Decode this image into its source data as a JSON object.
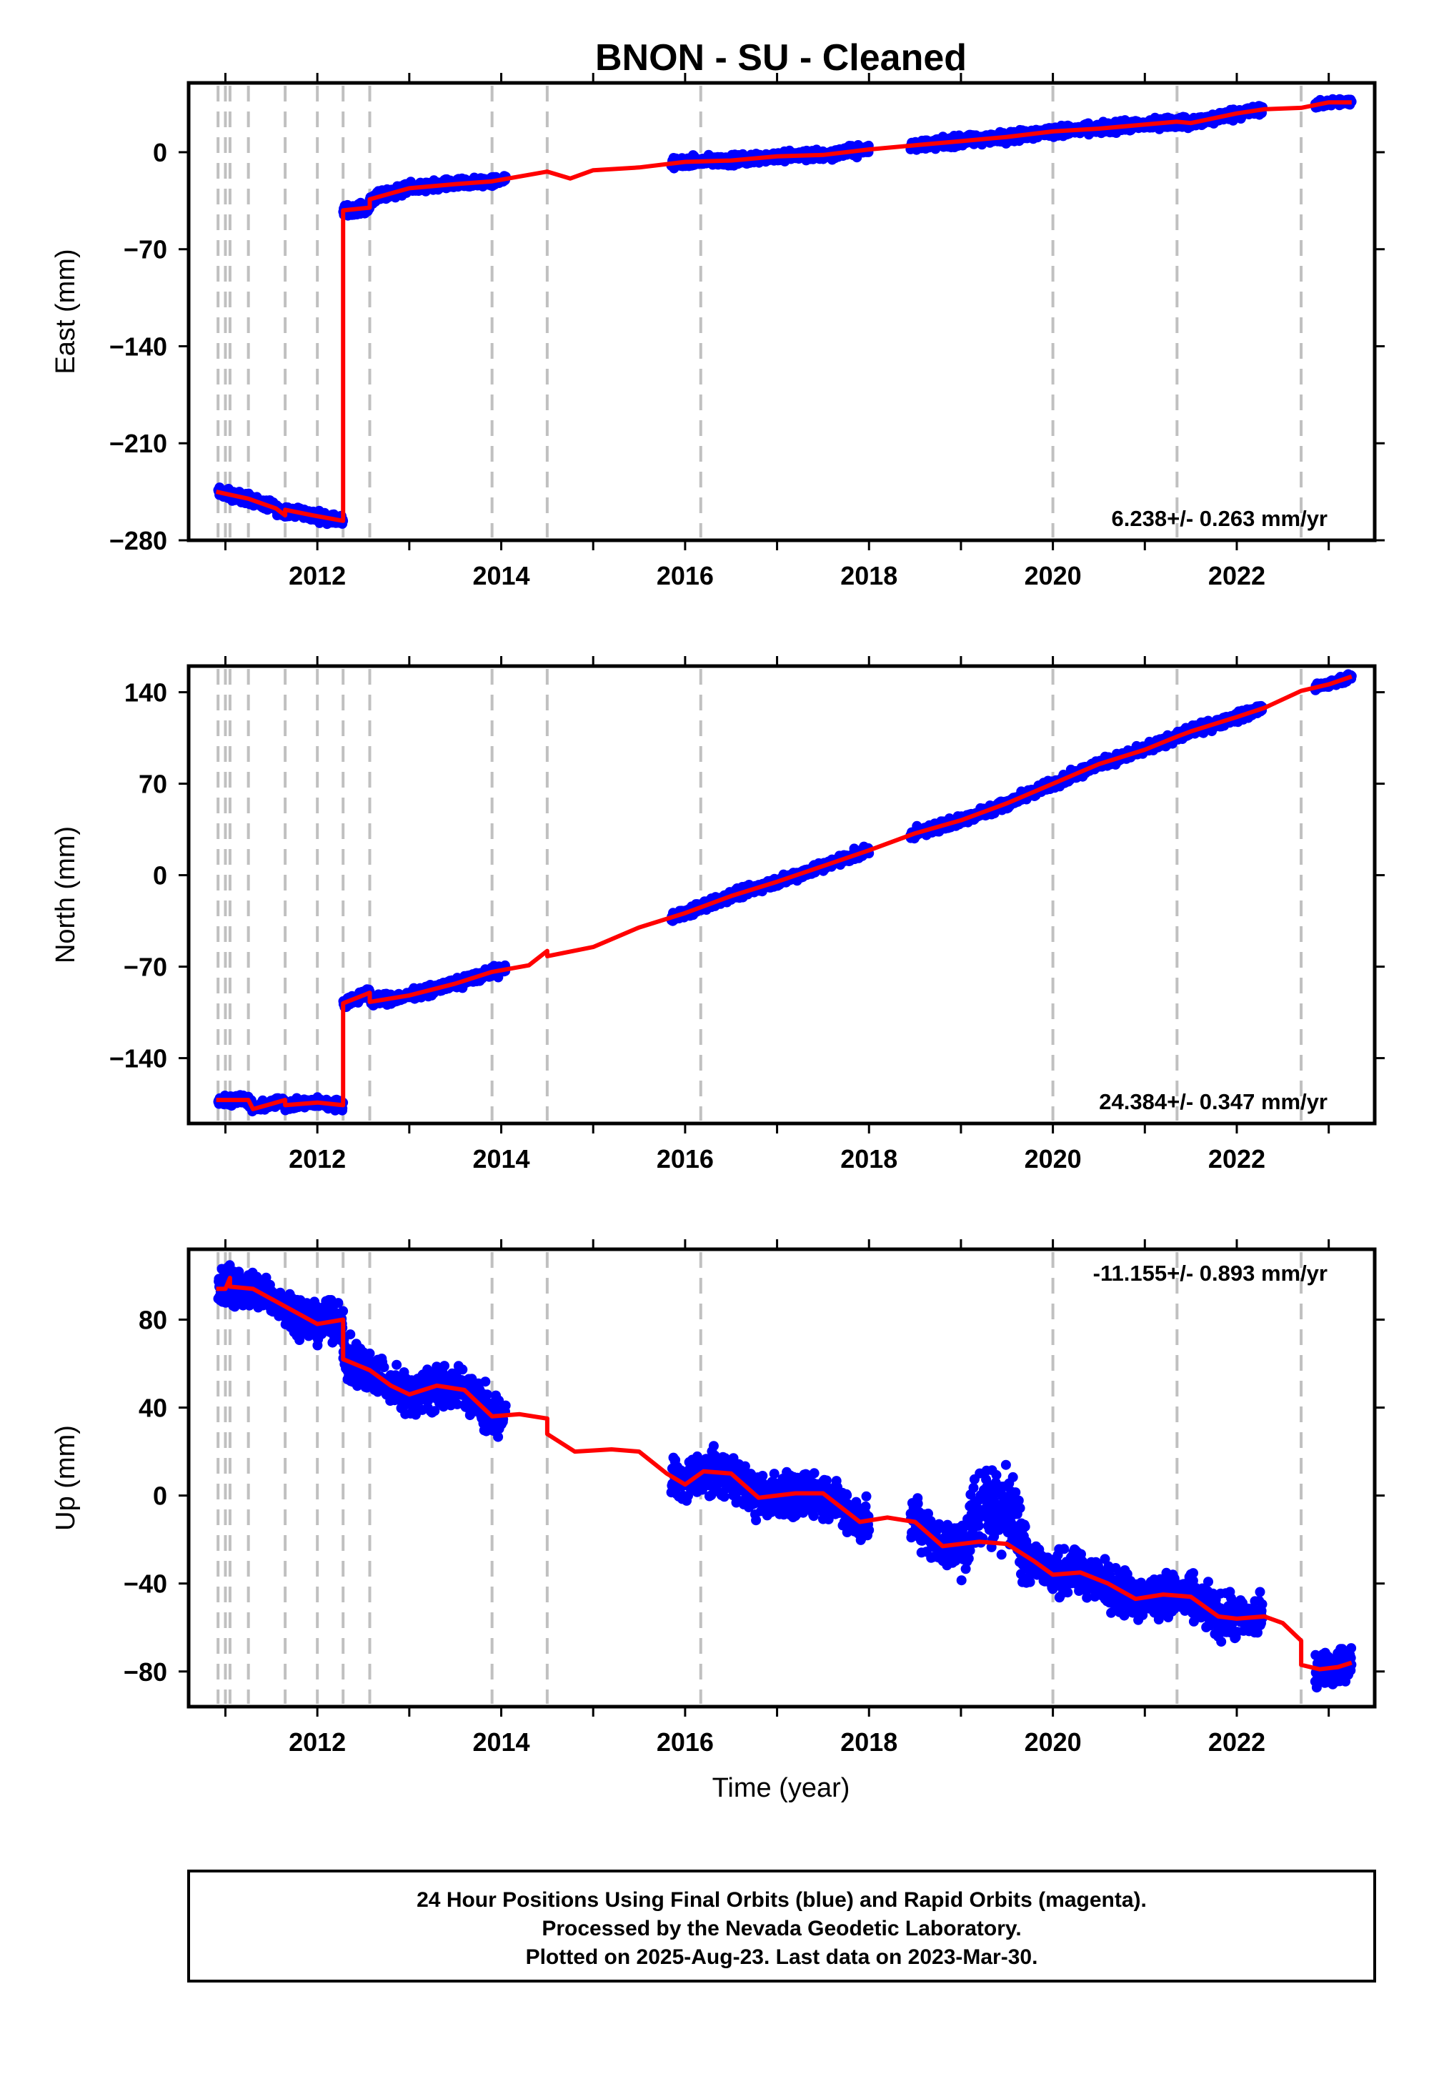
{
  "chart_data": {
    "type": "scatter",
    "title": "BNON  - SU - Cleaned",
    "xlabel": "Time (year)",
    "xlim": [
      2010.6,
      2023.5
    ],
    "x_ticks": [
      "2012",
      "2014",
      "2016",
      "2018",
      "2020",
      "2022"
    ],
    "grid": false,
    "event_lines_years": [
      2010.92,
      2011.0,
      2011.05,
      2011.25,
      2011.65,
      2012.0,
      2012.28,
      2012.57,
      2013.9,
      2014.5,
      2016.17,
      2020.0,
      2021.35,
      2022.7
    ],
    "colors": {
      "observations": "#0000ff",
      "model": "#ff0000",
      "event_lines": "#c0c0c0",
      "frame": "#000000"
    },
    "panels": [
      {
        "name": "East",
        "ylabel": "East (mm)",
        "ylim": [
          -280,
          50
        ],
        "y_ticks": [
          "0",
          "−70",
          "−140",
          "−210",
          "−280"
        ],
        "y_tick_values": [
          0,
          -70,
          -140,
          -210,
          -280
        ],
        "rate_label": "6.238+/- 0.263 mm/yr",
        "rate_position": "bottom-right",
        "model_line": [
          [
            2010.9,
            -245
          ],
          [
            2011.25,
            -250
          ],
          [
            2011.55,
            -257
          ],
          [
            2011.65,
            -262
          ],
          [
            2011.65,
            -258
          ],
          [
            2011.95,
            -262
          ],
          [
            2012.28,
            -266
          ],
          [
            2012.28,
            -42
          ],
          [
            2012.57,
            -40
          ],
          [
            2012.57,
            -34
          ],
          [
            2013.0,
            -26
          ],
          [
            2013.5,
            -23
          ],
          [
            2013.9,
            -21
          ],
          [
            2014.5,
            -14
          ],
          [
            2014.75,
            -19
          ],
          [
            2015.0,
            -13
          ],
          [
            2015.5,
            -11
          ],
          [
            2016.0,
            -7
          ],
          [
            2016.5,
            -6
          ],
          [
            2017.0,
            -3
          ],
          [
            2017.5,
            -2
          ],
          [
            2018.0,
            2
          ],
          [
            2018.5,
            5
          ],
          [
            2019.0,
            8
          ],
          [
            2019.5,
            11
          ],
          [
            2020.0,
            15
          ],
          [
            2020.5,
            17
          ],
          [
            2021.0,
            20
          ],
          [
            2021.35,
            22
          ],
          [
            2021.5,
            21
          ],
          [
            2022.0,
            28
          ],
          [
            2022.3,
            31
          ],
          [
            2022.7,
            32
          ],
          [
            2023.0,
            36
          ],
          [
            2023.25,
            36
          ]
        ],
        "obs_segments": [
          {
            "x": [
              2010.92,
              2012.28
            ],
            "noise": 3
          },
          {
            "x": [
              2012.28,
              2013.98
            ],
            "noise": 3
          },
          {
            "x": [
              2014.0,
              2014.05
            ],
            "noise": 2
          },
          {
            "x": [
              2015.85,
              2018.0
            ],
            "noise": 3
          },
          {
            "x": [
              2018.45,
              2022.28
            ],
            "noise": 3
          },
          {
            "x": [
              2022.85,
              2023.25
            ],
            "noise": 2
          }
        ]
      },
      {
        "name": "North",
        "ylabel": "North (mm)",
        "ylim": [
          -190,
          160
        ],
        "y_ticks": [
          "140",
          "70",
          "0",
          "−70",
          "−140"
        ],
        "y_tick_values": [
          140,
          70,
          0,
          -70,
          -140
        ],
        "rate_label": "24.384+/- 0.347 mm/yr",
        "rate_position": "bottom-right",
        "model_line": [
          [
            2010.9,
            -172
          ],
          [
            2011.25,
            -172
          ],
          [
            2011.3,
            -179
          ],
          [
            2011.65,
            -172
          ],
          [
            2011.65,
            -176
          ],
          [
            2012.0,
            -174
          ],
          [
            2012.28,
            -176
          ],
          [
            2012.28,
            -98
          ],
          [
            2012.57,
            -90
          ],
          [
            2012.57,
            -97
          ],
          [
            2013.0,
            -92
          ],
          [
            2013.5,
            -83
          ],
          [
            2013.9,
            -74
          ],
          [
            2014.3,
            -69
          ],
          [
            2014.5,
            -58
          ],
          [
            2014.5,
            -62
          ],
          [
            2015.0,
            -55
          ],
          [
            2015.5,
            -40
          ],
          [
            2016.0,
            -29
          ],
          [
            2016.5,
            -16
          ],
          [
            2017.0,
            -5
          ],
          [
            2017.5,
            7
          ],
          [
            2018.0,
            19
          ],
          [
            2018.5,
            32
          ],
          [
            2019.0,
            42
          ],
          [
            2019.5,
            55
          ],
          [
            2020.0,
            70
          ],
          [
            2020.5,
            85
          ],
          [
            2021.0,
            96
          ],
          [
            2021.35,
            106
          ],
          [
            2021.5,
            110
          ],
          [
            2022.0,
            121
          ],
          [
            2022.3,
            128
          ],
          [
            2022.7,
            141
          ],
          [
            2023.0,
            146
          ],
          [
            2023.25,
            152
          ]
        ],
        "obs_segments": [
          {
            "x": [
              2010.92,
              2012.28
            ],
            "noise": 3
          },
          {
            "x": [
              2012.28,
              2013.98
            ],
            "noise": 3
          },
          {
            "x": [
              2014.0,
              2014.05
            ],
            "noise": 2
          },
          {
            "x": [
              2015.85,
              2018.0
            ],
            "noise": 3
          },
          {
            "x": [
              2018.45,
              2022.28
            ],
            "noise": 3
          },
          {
            "x": [
              2022.85,
              2023.25
            ],
            "noise": 2
          }
        ]
      },
      {
        "name": "Up",
        "ylabel": "Up (mm)",
        "ylim": [
          -96,
          112
        ],
        "y_ticks": [
          "80",
          "40",
          "0",
          "−40",
          "−80"
        ],
        "y_tick_values": [
          80,
          40,
          0,
          -40,
          -80
        ],
        "rate_label": "-11.155+/- 0.893 mm/yr",
        "rate_position": "top-right",
        "model_line": [
          [
            2010.9,
            94
          ],
          [
            2011.0,
            94
          ],
          [
            2011.05,
            99
          ],
          [
            2011.05,
            95
          ],
          [
            2011.3,
            94
          ],
          [
            2011.65,
            86
          ],
          [
            2012.0,
            78
          ],
          [
            2012.28,
            80
          ],
          [
            2012.28,
            62
          ],
          [
            2012.57,
            57
          ],
          [
            2012.8,
            50
          ],
          [
            2013.0,
            46
          ],
          [
            2013.3,
            50
          ],
          [
            2013.6,
            48
          ],
          [
            2013.9,
            36
          ],
          [
            2014.2,
            37
          ],
          [
            2014.5,
            35
          ],
          [
            2014.5,
            28
          ],
          [
            2014.8,
            20
          ],
          [
            2015.2,
            21
          ],
          [
            2015.5,
            20
          ],
          [
            2015.8,
            10
          ],
          [
            2016.0,
            5
          ],
          [
            2016.2,
            11
          ],
          [
            2016.5,
            10
          ],
          [
            2016.8,
            -1
          ],
          [
            2017.2,
            1
          ],
          [
            2017.5,
            1
          ],
          [
            2017.9,
            -12
          ],
          [
            2018.2,
            -10
          ],
          [
            2018.5,
            -12
          ],
          [
            2018.8,
            -23
          ],
          [
            2019.2,
            -21
          ],
          [
            2019.5,
            -22
          ],
          [
            2019.8,
            -30
          ],
          [
            2020.0,
            -36
          ],
          [
            2020.3,
            -35
          ],
          [
            2020.6,
            -40
          ],
          [
            2020.9,
            -47
          ],
          [
            2021.2,
            -45
          ],
          [
            2021.5,
            -46
          ],
          [
            2021.8,
            -55
          ],
          [
            2022.0,
            -56
          ],
          [
            2022.3,
            -55
          ],
          [
            2022.5,
            -58
          ],
          [
            2022.7,
            -66
          ],
          [
            2022.7,
            -77
          ],
          [
            2022.9,
            -79
          ],
          [
            2023.1,
            -78
          ],
          [
            2023.25,
            -76
          ]
        ],
        "obs_segments": [
          {
            "x": [
              2010.92,
              2012.28
            ],
            "noise": 7
          },
          {
            "x": [
              2012.28,
              2013.98
            ],
            "noise": 8
          },
          {
            "x": [
              2014.0,
              2014.05
            ],
            "noise": 4
          },
          {
            "x": [
              2015.85,
              2018.0
            ],
            "noise": 8
          },
          {
            "x": [
              2018.45,
              2019.0
            ],
            "noise": 8
          },
          {
            "x": [
              2019.0,
              2019.75
            ],
            "noise": 14,
            "offset": 18
          },
          {
            "x": [
              2019.75,
              2022.28
            ],
            "noise": 8
          },
          {
            "x": [
              2022.85,
              2023.25
            ],
            "noise": 6
          }
        ]
      }
    ],
    "footer": [
      "24 Hour Positions Using Final Orbits (blue) and Rapid Orbits (magenta).",
      "Processed by the Nevada Geodetic Laboratory.",
      "Plotted on 2025-Aug-23. Last data on 2023-Mar-30."
    ]
  }
}
